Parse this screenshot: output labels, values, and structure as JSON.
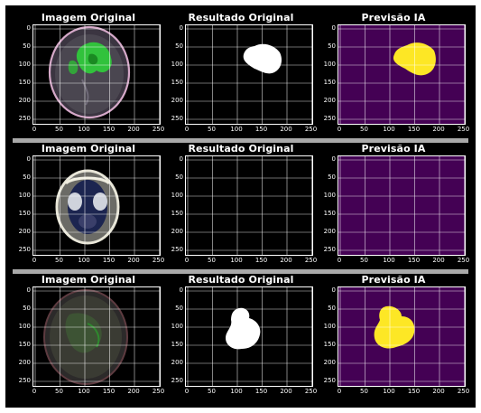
{
  "figure": {
    "rows": [
      {
        "panels": [
          {
            "title": "Imagem Original",
            "kind": "mri",
            "variant": 1
          },
          {
            "title": "Resultado Original",
            "kind": "mask",
            "variant": 1
          },
          {
            "title": "Previsão IA",
            "kind": "pred",
            "variant": 1
          }
        ]
      },
      {
        "panels": [
          {
            "title": "Imagem Original",
            "kind": "mri",
            "variant": 2
          },
          {
            "title": "Resultado Original",
            "kind": "mask",
            "variant": 2
          },
          {
            "title": "Previsão IA",
            "kind": "pred",
            "variant": 2
          }
        ]
      },
      {
        "panels": [
          {
            "title": "Imagem Original",
            "kind": "mri",
            "variant": 3
          },
          {
            "title": "Resultado Original",
            "kind": "mask",
            "variant": 3
          },
          {
            "title": "Previsão IA",
            "kind": "pred",
            "variant": 3
          }
        ]
      }
    ],
    "x_ticks": [
      "0",
      "50",
      "100",
      "150",
      "200",
      "250"
    ],
    "y_ticks": [
      "0",
      "50",
      "100",
      "150",
      "200",
      "250"
    ],
    "colors": {
      "background": "#000000",
      "grid": "#ffffff",
      "mask_fg": "#ffffff",
      "pred_bg": "#440154",
      "pred_fg": "#fde725",
      "separator": "#a9a9a9"
    }
  }
}
